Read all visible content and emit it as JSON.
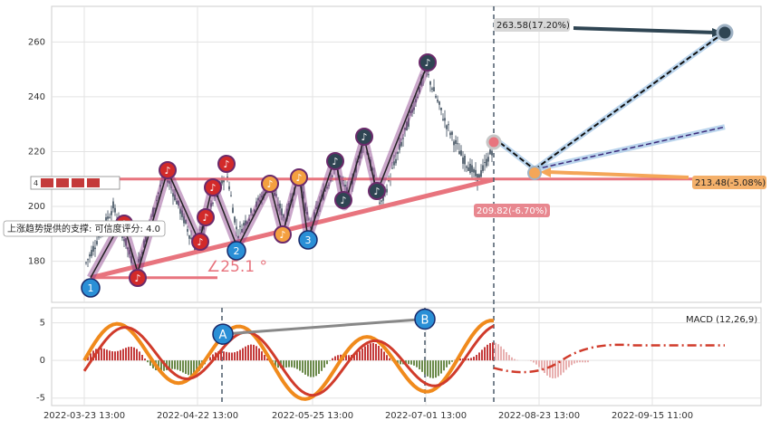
{
  "chart_data": [
    {
      "type": "candlestick",
      "name": "price",
      "ylim": [
        165,
        273
      ],
      "yticks": [
        180,
        200,
        220,
        240,
        260
      ],
      "x_tick_labels": [
        "2022-03-23 13:00",
        "2022-04-22 13:00",
        "2022-05-25 13:00",
        "2022-07-01 13:00",
        "2022-08-23 13:00",
        "2022-09-15 11:00"
      ],
      "grid": true,
      "support_line_label": "上涨趋势提供的支撑: 可信度评分: 4.0",
      "legend_label": "4",
      "angle_label": "∠25.1 °",
      "support_level": 210,
      "targets": [
        {
          "label": "263.58(17.20%)",
          "value": 263.58,
          "color": "#2f4553"
        },
        {
          "label": "213.48(-5.08%)",
          "value": 213.48,
          "color": "#f4a658"
        },
        {
          "label": "209.82(-6.70%)",
          "value": 209.82,
          "color": "#e8878f"
        }
      ],
      "wave_points": [
        {
          "label": "1",
          "value": 174
        },
        {
          "label": "2",
          "value": 185
        },
        {
          "label": "3",
          "value": 188
        },
        {
          "label": "",
          "value": 252
        }
      ],
      "markers": [
        {
          "label": "4",
          "value": 195
        }
      ]
    },
    {
      "type": "line",
      "name": "macd",
      "title": "MACD (12,26,9)",
      "ylim": [
        -6,
        7
      ],
      "yticks": [
        5,
        0,
        -5
      ],
      "divergence_points": [
        {
          "label": "A",
          "value": 3.5
        },
        {
          "label": "B",
          "value": 5.5
        }
      ]
    }
  ],
  "colors": {
    "pink": "#e8747e",
    "dark": "#2f4553",
    "orange": "#f4a658",
    "blue": "#2a8fd6",
    "red": "#cc2222",
    "purple": "#7b2d7b",
    "macd_orange": "#f08a1c",
    "macd_red": "#d03b2b"
  }
}
